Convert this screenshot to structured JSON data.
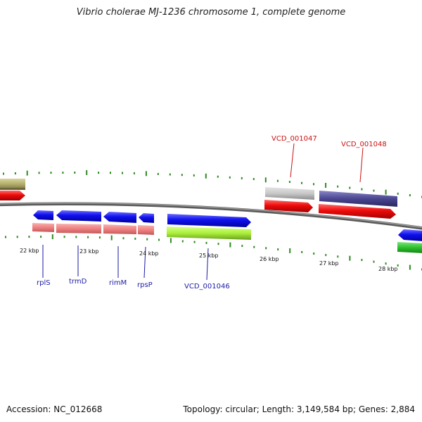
{
  "title": "Vibrio cholerae MJ-1236 chromosome 1, complete genome",
  "footer": {
    "accession": "Accession: NC_012668",
    "summary": "Topology: circular; Length: 3,149,584 bp; Genes: 2,884"
  },
  "colors": {
    "backbone": "#7a7a7a",
    "tick": "#2e8b1f",
    "label_blue": "#1a1aa6",
    "label_red": "#cc1111"
  },
  "scale_labels": [
    "22 kbp",
    "23 kbp",
    "24 kbp",
    "25 kbp",
    "26 kbp",
    "27 kbp",
    "28 kbp"
  ],
  "gene_labels": {
    "bottom": [
      "rplS",
      "trmD",
      "rimM",
      "rpsP",
      "VCD_001046"
    ],
    "top": [
      "VCD_001047",
      "VCD_001048"
    ]
  }
}
